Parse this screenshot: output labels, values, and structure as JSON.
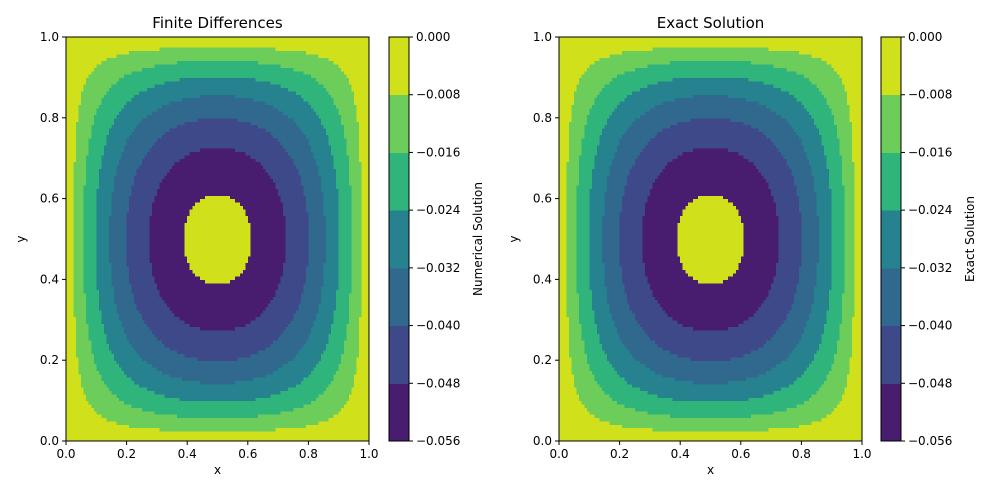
{
  "chart_data": [
    {
      "type": "contour",
      "title": "Finite Differences",
      "xlabel": "x",
      "ylabel": "y",
      "colorbar_label": "Numerical Solution",
      "xlim": [
        0,
        1
      ],
      "ylim": [
        0,
        1
      ],
      "xticks": [
        "0.0",
        "0.2",
        "0.4",
        "0.6",
        "0.8",
        "1.0"
      ],
      "yticks": [
        "0.0",
        "0.2",
        "0.4",
        "0.6",
        "0.8",
        "1.0"
      ],
      "levels": [
        -0.056,
        -0.048,
        -0.04,
        -0.032,
        -0.024,
        -0.016,
        -0.008,
        0.0
      ],
      "level_labels": [
        "−0.056",
        "−0.048",
        "−0.040",
        "−0.032",
        "−0.024",
        "−0.016",
        "−0.008",
        "0.000"
      ],
      "colormap": [
        "#481c6e",
        "#3e4989",
        "#31688e",
        "#26828e",
        "#2fb47c",
        "#6ccd5a",
        "#d0e11c"
      ]
    },
    {
      "type": "contour",
      "title": "Exact Solution",
      "xlabel": "x",
      "ylabel": "y",
      "colorbar_label": "Exact Solution",
      "xlim": [
        0,
        1
      ],
      "ylim": [
        0,
        1
      ],
      "xticks": [
        "0.0",
        "0.2",
        "0.4",
        "0.6",
        "0.8",
        "1.0"
      ],
      "yticks": [
        "0.0",
        "0.2",
        "0.4",
        "0.6",
        "0.8",
        "1.0"
      ],
      "levels": [
        -0.056,
        -0.048,
        -0.04,
        -0.032,
        -0.024,
        -0.016,
        -0.008,
        0.0
      ],
      "level_labels": [
        "−0.056",
        "−0.048",
        "−0.040",
        "−0.032",
        "−0.024",
        "−0.016",
        "−0.008",
        "0.000"
      ],
      "colormap": [
        "#481c6e",
        "#3e4989",
        "#31688e",
        "#26828e",
        "#2fb47c",
        "#6ccd5a",
        "#d0e11c"
      ]
    }
  ]
}
